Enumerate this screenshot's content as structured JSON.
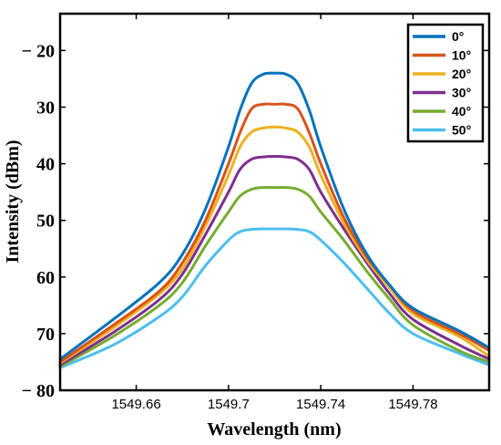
{
  "chart_data": {
    "type": "line",
    "xlabel": "Wavelength (nm)",
    "ylabel": "Intensity (dBm)",
    "xlim": [
      1549.627,
      1549.813
    ],
    "ylim": [
      -80,
      -13.5
    ],
    "x_ticks": [
      1549.66,
      1549.7,
      1549.74,
      1549.78
    ],
    "x_tick_labels": [
      "1549.66",
      "1549.7",
      "1549.74",
      "1549.78"
    ],
    "y_ticks": [
      -20,
      -30,
      -40,
      -50,
      -60,
      -70,
      -80
    ],
    "y_tick_labels": [
      "− 20",
      "30",
      "40",
      "50",
      "60",
      "70",
      "− 80"
    ],
    "grid": false,
    "legend_position": "top-right",
    "series": [
      {
        "name": "0°",
        "color": "#0072BD",
        "x": [
          1549.627,
          1549.65,
          1549.67,
          1549.68,
          1549.69,
          1549.7,
          1549.705,
          1549.71,
          1549.715,
          1549.72,
          1549.725,
          1549.73,
          1549.735,
          1549.74,
          1549.75,
          1549.76,
          1549.77,
          1549.78,
          1549.8,
          1549.813
        ],
        "y": [
          -74.5,
          -67.5,
          -61,
          -56,
          -48,
          -37,
          -30.5,
          -25.8,
          -24.2,
          -24,
          -24.2,
          -25.8,
          -30.5,
          -37,
          -48,
          -56,
          -61.5,
          -65.5,
          -69.5,
          -72.5
        ]
      },
      {
        "name": "10°",
        "color": "#D95319",
        "x": [
          1549.627,
          1549.65,
          1549.67,
          1549.68,
          1549.69,
          1549.7,
          1549.705,
          1549.71,
          1549.715,
          1549.72,
          1549.725,
          1549.73,
          1549.735,
          1549.74,
          1549.75,
          1549.76,
          1549.77,
          1549.78,
          1549.8,
          1549.813
        ],
        "y": [
          -75,
          -68.5,
          -62.5,
          -57.5,
          -50,
          -40,
          -34.5,
          -30.3,
          -29.5,
          -29.5,
          -29.5,
          -30.3,
          -34.5,
          -40,
          -49.5,
          -56.5,
          -61.5,
          -66,
          -70,
          -73
        ]
      },
      {
        "name": "20°",
        "color": "#EDB120",
        "x": [
          1549.627,
          1549.65,
          1549.67,
          1549.68,
          1549.69,
          1549.7,
          1549.705,
          1549.71,
          1549.715,
          1549.72,
          1549.725,
          1549.73,
          1549.735,
          1549.74,
          1549.75,
          1549.76,
          1549.77,
          1549.78,
          1549.8,
          1549.813
        ],
        "y": [
          -75.2,
          -69,
          -63,
          -58.5,
          -51,
          -42,
          -37,
          -34.4,
          -33.7,
          -33.5,
          -33.7,
          -34.4,
          -37,
          -42,
          -50.5,
          -57,
          -62,
          -66.5,
          -70.5,
          -74
        ]
      },
      {
        "name": "30°",
        "color": "#7E2F8E",
        "x": [
          1549.627,
          1549.65,
          1549.67,
          1549.68,
          1549.69,
          1549.7,
          1549.705,
          1549.71,
          1549.715,
          1549.72,
          1549.725,
          1549.73,
          1549.735,
          1549.74,
          1549.75,
          1549.76,
          1549.77,
          1549.78,
          1549.8,
          1549.813
        ],
        "y": [
          -75.5,
          -69.8,
          -64,
          -59.5,
          -52.5,
          -45,
          -41,
          -39.2,
          -38.8,
          -38.7,
          -38.8,
          -39.2,
          -41,
          -45,
          -51.5,
          -57.5,
          -63,
          -67.5,
          -72,
          -74.5
        ]
      },
      {
        "name": "40°",
        "color": "#77AC30",
        "x": [
          1549.627,
          1549.65,
          1549.67,
          1549.68,
          1549.69,
          1549.7,
          1549.705,
          1549.71,
          1549.715,
          1549.72,
          1549.725,
          1549.73,
          1549.735,
          1549.74,
          1549.75,
          1549.76,
          1549.77,
          1549.78,
          1549.8,
          1549.813
        ],
        "y": [
          -75.8,
          -70.5,
          -65,
          -61,
          -54.5,
          -48.5,
          -45.7,
          -44.5,
          -44.2,
          -44.2,
          -44.2,
          -44.5,
          -45.7,
          -48.5,
          -53.5,
          -59,
          -64,
          -68.5,
          -73,
          -75
        ]
      },
      {
        "name": "50°",
        "color": "#4DBEEE",
        "x": [
          1549.627,
          1549.65,
          1549.67,
          1549.68,
          1549.69,
          1549.7,
          1549.705,
          1549.71,
          1549.715,
          1549.72,
          1549.725,
          1549.73,
          1549.735,
          1549.74,
          1549.75,
          1549.76,
          1549.77,
          1549.78,
          1549.8,
          1549.813
        ],
        "y": [
          -76,
          -72,
          -67,
          -63.5,
          -58,
          -53.5,
          -52,
          -51.6,
          -51.5,
          -51.5,
          -51.5,
          -51.6,
          -52,
          -53.5,
          -57.5,
          -62,
          -66.5,
          -70,
          -73.5,
          -75.5
        ]
      }
    ]
  }
}
